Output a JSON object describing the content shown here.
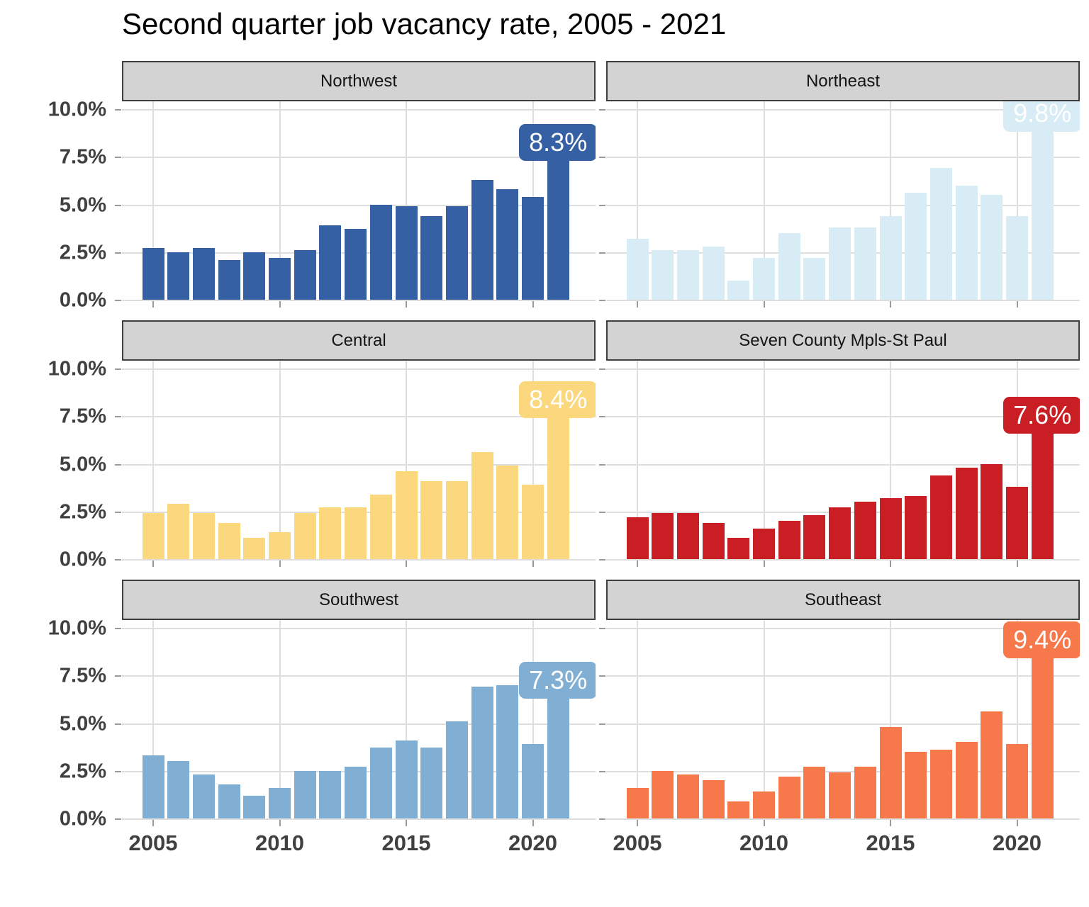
{
  "chart_data": {
    "type": "bar",
    "title": "Second quarter job vacancy rate, 2005 - 2021",
    "x": [
      2005,
      2006,
      2007,
      2008,
      2009,
      2010,
      2011,
      2012,
      2013,
      2014,
      2015,
      2016,
      2017,
      2018,
      2019,
      2020,
      2021
    ],
    "x_tick_labels": [
      "2005",
      "2010",
      "2015",
      "2020"
    ],
    "x_tick_years": [
      2005,
      2010,
      2015,
      2020
    ],
    "y_tick_labels": [
      "10.0%",
      "7.5%",
      "5.0%",
      "2.5%",
      "0.0%"
    ],
    "y_tick_values": [
      10,
      7.5,
      5,
      2.5,
      0
    ],
    "ylim": [
      0,
      10
    ],
    "ylabel": "",
    "xlabel": "",
    "grid": true,
    "legend_position": "none",
    "facet_layout": {
      "rows": 3,
      "cols": 2
    },
    "facets": [
      {
        "name": "Northwest",
        "color": "#3561A4",
        "last_value_label": "8.3%",
        "values": [
          2.7,
          2.5,
          2.7,
          2.1,
          2.5,
          2.2,
          2.6,
          3.9,
          3.7,
          5.0,
          4.9,
          4.4,
          4.9,
          6.3,
          5.8,
          5.4,
          8.3
        ]
      },
      {
        "name": "Northeast",
        "color": "#D8ECF6",
        "last_value_label": "9.8%",
        "values": [
          3.2,
          2.6,
          2.6,
          2.8,
          1.0,
          2.2,
          3.5,
          2.2,
          3.8,
          3.8,
          4.4,
          5.6,
          6.9,
          6.0,
          5.5,
          4.4,
          9.8
        ]
      },
      {
        "name": "Central",
        "color": "#FBD87E",
        "last_value_label": "8.4%",
        "values": [
          2.4,
          2.9,
          2.4,
          1.9,
          1.1,
          1.4,
          2.4,
          2.7,
          2.7,
          3.4,
          4.6,
          4.1,
          4.1,
          5.6,
          4.9,
          3.9,
          8.4
        ]
      },
      {
        "name": "Seven County Mpls-St Paul",
        "color": "#C81E24",
        "last_value_label": "7.6%",
        "values": [
          2.2,
          2.4,
          2.4,
          1.9,
          1.1,
          1.6,
          2.0,
          2.3,
          2.7,
          3.0,
          3.2,
          3.3,
          4.4,
          4.8,
          5.0,
          3.8,
          7.6
        ]
      },
      {
        "name": "Southwest",
        "color": "#80AFD3",
        "last_value_label": "7.3%",
        "values": [
          3.3,
          3.0,
          2.3,
          1.8,
          1.2,
          1.6,
          2.5,
          2.5,
          2.7,
          3.7,
          4.1,
          3.7,
          5.1,
          6.9,
          7.0,
          3.9,
          7.3
        ]
      },
      {
        "name": "Southeast",
        "color": "#F7794B",
        "last_value_label": "9.4%",
        "values": [
          1.6,
          2.5,
          2.3,
          2.0,
          0.9,
          1.4,
          2.2,
          2.7,
          2.4,
          2.7,
          4.8,
          3.5,
          3.6,
          4.0,
          5.6,
          3.9,
          9.4
        ]
      }
    ],
    "colors": {
      "header_bg": "#D3D3D3",
      "header_border": "#3F3F3F",
      "gridline": "#DEDEDE",
      "axis_text": "#404040",
      "label_text": "#FFFFFF"
    }
  }
}
